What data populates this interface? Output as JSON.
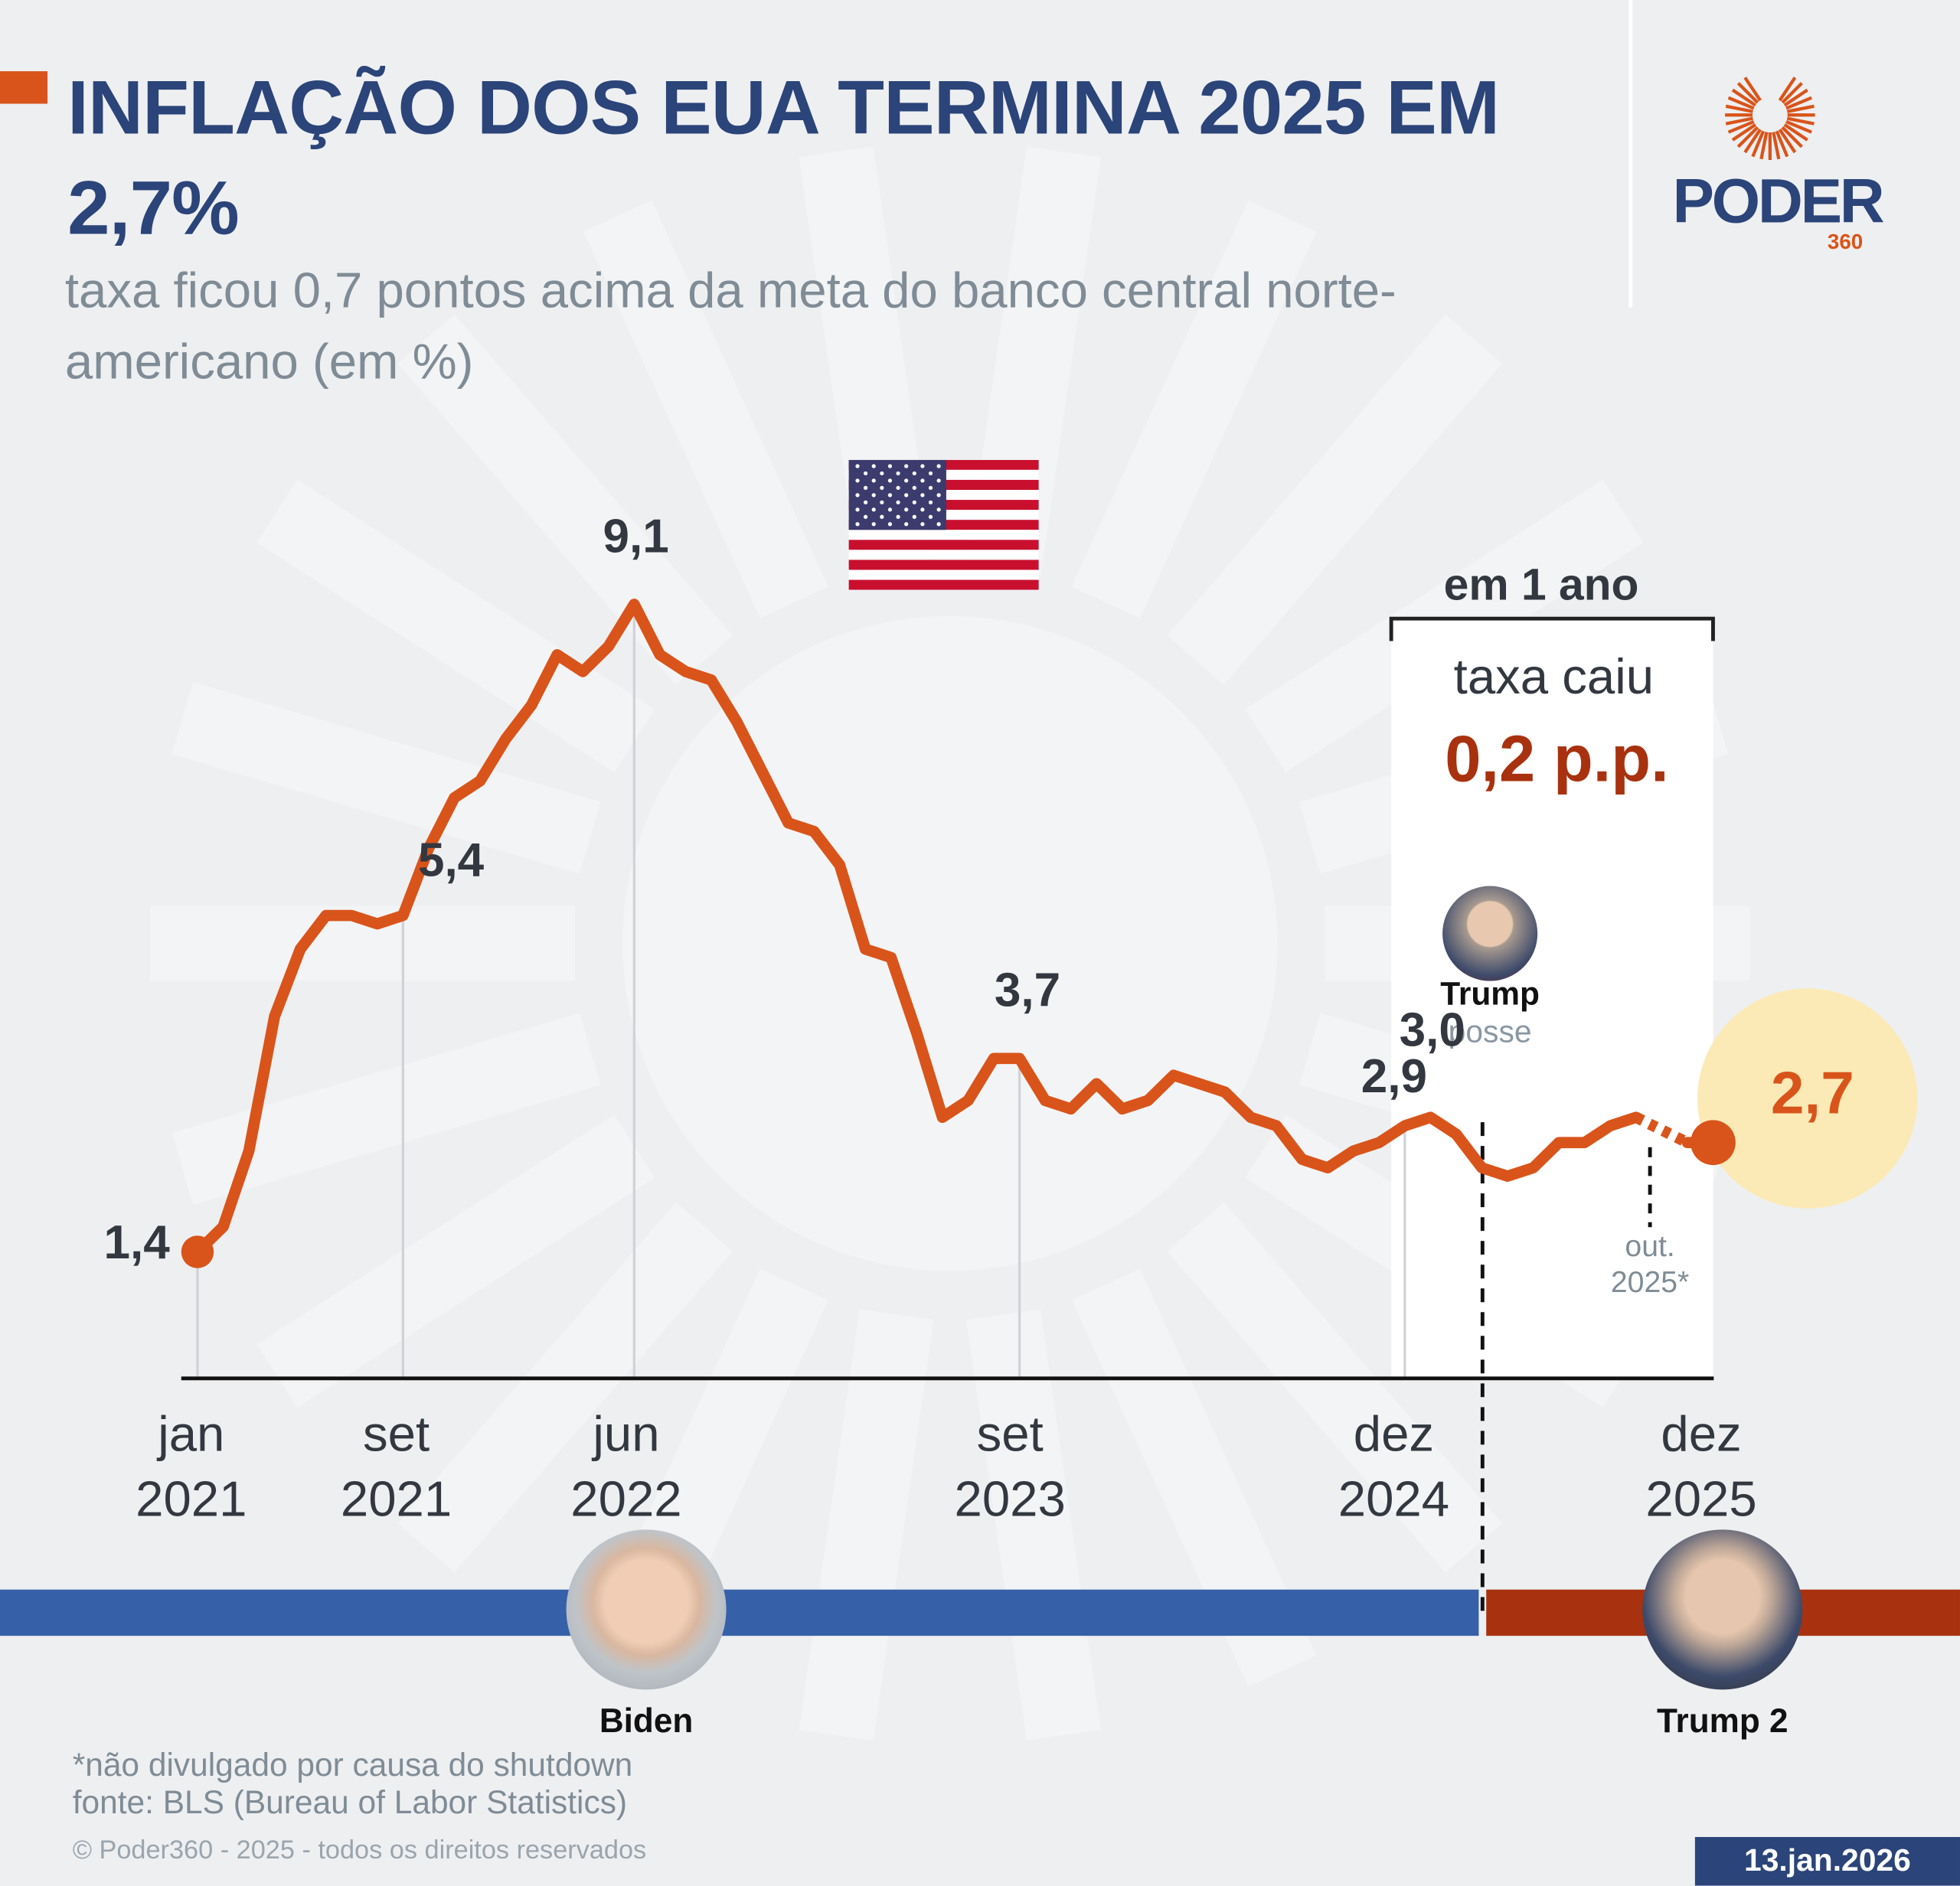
{
  "header": {
    "title": "INFLAÇÃO DOS EUA TERMINA 2025 EM 2,7%",
    "subtitle": "taxa ficou 0,7 pontos acima da meta do banco central norte-americano (em %)"
  },
  "logo": {
    "name": "PODER",
    "suffix": "360",
    "icon": "sunburst-icon"
  },
  "colors": {
    "line": "#d9541a",
    "title": "#2b4479",
    "biden": "#3660a8",
    "trump": "#a8320f",
    "highlight_circle": "#fbeab5"
  },
  "highlight": {
    "period": "em 1 ano",
    "text": "taxa caiu",
    "value": "0,2 p.p."
  },
  "event": {
    "name": "Trump",
    "label": "posse"
  },
  "missing_note": {
    "label": "out. 2025*"
  },
  "presidents": [
    {
      "name": "Biden",
      "color": "#3660a8"
    },
    {
      "name": "Trump 2",
      "color": "#a8320f"
    }
  ],
  "footer": {
    "note": "*não divulgado por causa do shutdown",
    "source": "fonte: BLS (Bureau of Labor Statistics)",
    "copyright": "© Poder360 - 2025 - todos os direitos reservados",
    "date": "13.jan.2026"
  },
  "chart_data": {
    "type": "line",
    "title": "INFLAÇÃO DOS EUA TERMINA 2025 EM 2,7%",
    "ylabel": "%",
    "ylim": [
      0,
      10
    ],
    "grid": false,
    "x": [
      "2021-01",
      "2021-02",
      "2021-03",
      "2021-04",
      "2021-05",
      "2021-06",
      "2021-07",
      "2021-08",
      "2021-09",
      "2021-10",
      "2021-11",
      "2021-12",
      "2022-01",
      "2022-02",
      "2022-03",
      "2022-04",
      "2022-05",
      "2022-06",
      "2022-07",
      "2022-08",
      "2022-09",
      "2022-10",
      "2022-11",
      "2022-12",
      "2023-01",
      "2023-02",
      "2023-03",
      "2023-04",
      "2023-05",
      "2023-06",
      "2023-07",
      "2023-08",
      "2023-09",
      "2023-10",
      "2023-11",
      "2023-12",
      "2024-01",
      "2024-02",
      "2024-03",
      "2024-04",
      "2024-05",
      "2024-06",
      "2024-07",
      "2024-08",
      "2024-09",
      "2024-10",
      "2024-11",
      "2024-12",
      "2025-01",
      "2025-02",
      "2025-03",
      "2025-04",
      "2025-05",
      "2025-06",
      "2025-07",
      "2025-08",
      "2025-09",
      "2025-10",
      "2025-11",
      "2025-12"
    ],
    "values": [
      1.4,
      1.7,
      2.6,
      4.2,
      5.0,
      5.4,
      5.4,
      5.3,
      5.4,
      6.2,
      6.8,
      7.0,
      7.5,
      7.9,
      8.5,
      8.3,
      8.6,
      9.1,
      8.5,
      8.3,
      8.2,
      7.7,
      7.1,
      6.5,
      6.4,
      6.0,
      5.0,
      4.9,
      4.0,
      3.0,
      3.2,
      3.7,
      3.7,
      3.2,
      3.1,
      3.4,
      3.1,
      3.2,
      3.5,
      3.4,
      3.3,
      3.0,
      2.9,
      2.5,
      2.4,
      2.6,
      2.7,
      2.9,
      3.0,
      2.8,
      2.4,
      2.3,
      2.4,
      2.7,
      2.7,
      2.9,
      3.0,
      null,
      2.7,
      2.7
    ],
    "ticks": [
      {
        "x": "2021-01",
        "month": "jan",
        "year": "2021"
      },
      {
        "x": "2021-09",
        "month": "set",
        "year": "2021"
      },
      {
        "x": "2022-06",
        "month": "jun",
        "year": "2022"
      },
      {
        "x": "2023-09",
        "month": "set",
        "year": "2023"
      },
      {
        "x": "2024-12",
        "month": "dez",
        "year": "2024"
      },
      {
        "x": "2025-12",
        "month": "dez",
        "year": "2025"
      }
    ],
    "data_labels": [
      {
        "x": "2021-01",
        "text": "1,4"
      },
      {
        "x": "2021-09",
        "text": "5,4"
      },
      {
        "x": "2022-06",
        "text": "9,1"
      },
      {
        "x": "2023-09",
        "text": "3,7"
      },
      {
        "x": "2024-12",
        "text": "2,9"
      },
      {
        "x": "2025-01",
        "text": "3,0"
      },
      {
        "x": "2025-12",
        "text": "2,7"
      }
    ],
    "highlight_range": [
      "2024-12",
      "2025-12"
    ],
    "event_line": "2025-01",
    "missing": "2025-10"
  }
}
